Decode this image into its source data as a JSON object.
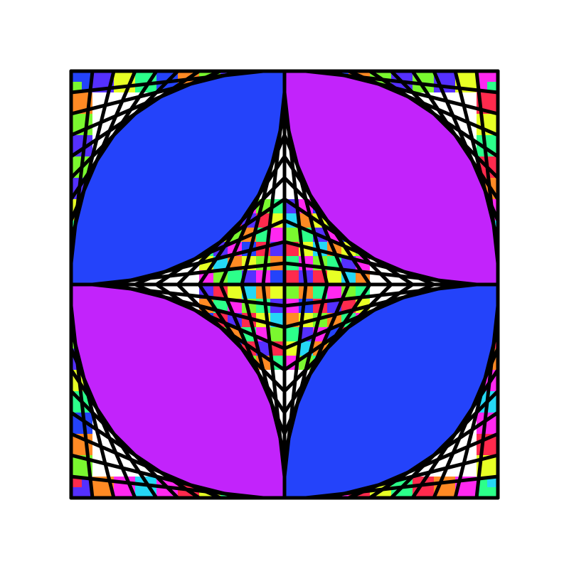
{
  "artwork": {
    "kind": "string-art-stained-glass",
    "background": "#ffffff",
    "outline_color": "#000000",
    "divisions_per_side": 10,
    "palette": {
      "blue": "#2443fa",
      "purple": "#c223fb",
      "magenta": "#ff28f0",
      "orange": "#ff8a24",
      "yellow": "#e7ff25",
      "lime": "#7af82f",
      "green": "#2cff8a",
      "red": "#ff2a4d",
      "cyan": "#25d7f5",
      "violet": "#5530ff"
    },
    "cycle": [
      "lime",
      "red",
      "violet",
      "orange",
      "yellow",
      "magenta",
      "green",
      "cyan",
      "blue",
      "magenta",
      "orange",
      "red",
      "lime",
      "yellow",
      "violet",
      "green"
    ],
    "quadrants": [
      {
        "position": "top-left",
        "fill": "blue"
      },
      {
        "position": "top-right",
        "fill": "purple"
      },
      {
        "position": "bottom-left",
        "fill": "purple"
      },
      {
        "position": "bottom-right",
        "fill": "blue"
      }
    ]
  }
}
